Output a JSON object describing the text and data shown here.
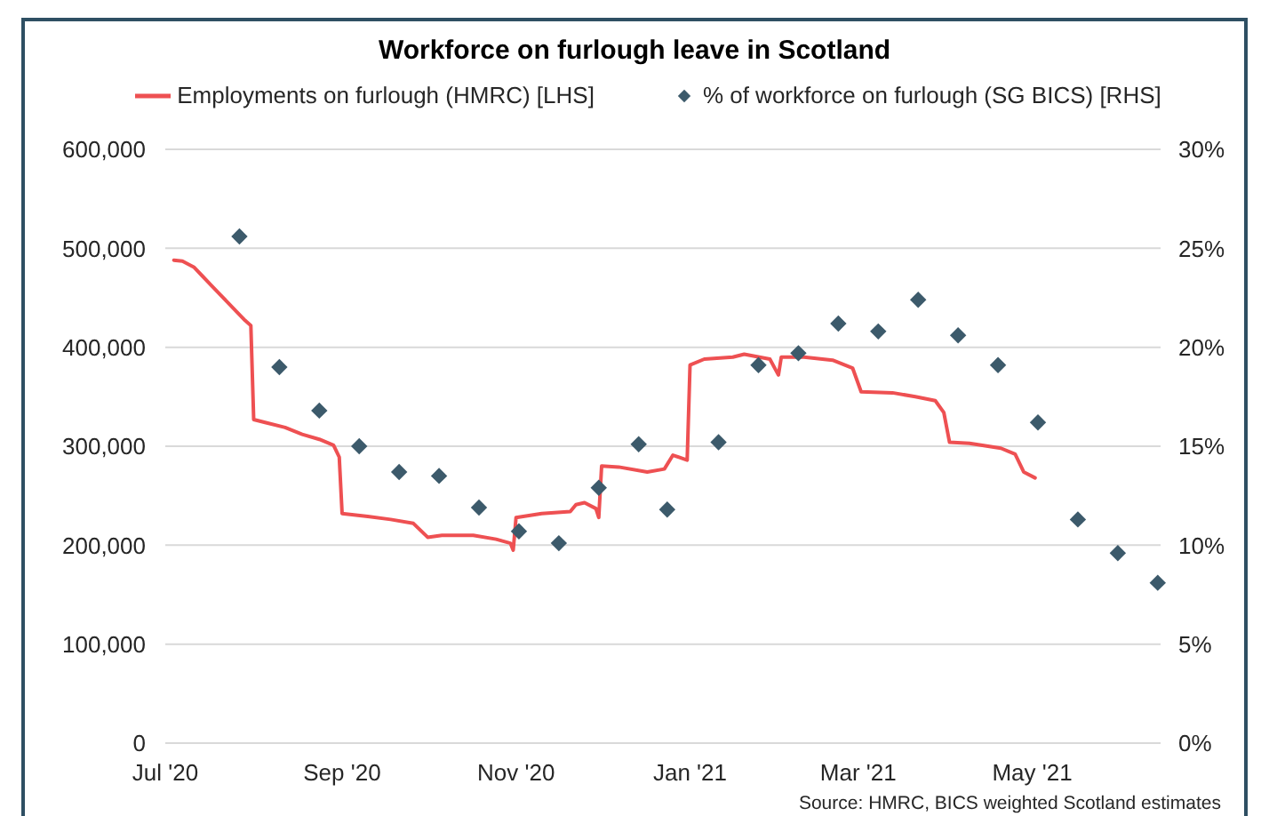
{
  "chart_data": {
    "type": "line",
    "title": "Workforce on furlough leave in Scotland",
    "xlim": [
      "2020-07-01",
      "2021-06-15"
    ],
    "xticks": [
      {
        "value": "2020-07-01",
        "label": "Jul '20"
      },
      {
        "value": "2020-09-01",
        "label": "Sep '20"
      },
      {
        "value": "2020-11-01",
        "label": "Nov '20"
      },
      {
        "value": "2021-01-01",
        "label": "Jan '21"
      },
      {
        "value": "2021-03-01",
        "label": "Mar '21"
      },
      {
        "value": "2021-05-01",
        "label": "May '21"
      }
    ],
    "ylim": [
      0,
      600000
    ],
    "yticks": [
      0,
      {
        "value": 100000,
        "label": "100,000"
      },
      {
        "value": 200000,
        "label": "200,000"
      },
      {
        "value": 300000,
        "label": "300,000"
      },
      {
        "value": 400000,
        "label": "400,000"
      },
      {
        "value": 500000,
        "label": "500,000"
      },
      {
        "value": 600000,
        "label": "600,000"
      }
    ],
    "y2lim": [
      0,
      30
    ],
    "y2ticks": [
      {
        "value": 0,
        "label": "0%"
      },
      {
        "value": 5,
        "label": "5%"
      },
      {
        "value": 10,
        "label": "10%"
      },
      {
        "value": 15,
        "label": "15%"
      },
      {
        "value": 20,
        "label": "20%"
      },
      {
        "value": 25,
        "label": "25%"
      },
      {
        "value": 30,
        "label": "30%"
      }
    ],
    "grid": "y",
    "legend": "top",
    "series": [
      {
        "name": "Employments on furlough (HMRC) [LHS]",
        "color": "#ee5052",
        "x": [
          "2020-07-04",
          "2020-07-07",
          "2020-07-11",
          "2020-07-14",
          "2020-07-17",
          "2020-07-20",
          "2020-07-23",
          "2020-07-26",
          "2020-07-29",
          "2020-07-31",
          "2020-08-01",
          "2020-08-05",
          "2020-08-12",
          "2020-08-18",
          "2020-08-24",
          "2020-08-29",
          "2020-08-31",
          "2020-09-01",
          "2020-09-10",
          "2020-09-18",
          "2020-09-26",
          "2020-10-01",
          "2020-10-06",
          "2020-10-17",
          "2020-10-25",
          "2020-10-30",
          "2020-10-31",
          "2020-11-01",
          "2020-11-10",
          "2020-11-20",
          "2020-11-22",
          "2020-11-25",
          "2020-11-29",
          "2020-11-30",
          "2020-12-01",
          "2020-12-07",
          "2020-12-17",
          "2020-12-23",
          "2020-12-26",
          "2020-12-29",
          "2020-12-31",
          "2021-01-01",
          "2021-01-06",
          "2021-01-16",
          "2021-01-20",
          "2021-01-29",
          "2021-02-01",
          "2021-02-02",
          "2021-02-10",
          "2021-02-20",
          "2021-02-27",
          "2021-03-02",
          "2021-03-13",
          "2021-03-21",
          "2021-03-28",
          "2021-03-31",
          "2021-04-02",
          "2021-04-09",
          "2021-04-20",
          "2021-04-25",
          "2021-04-28",
          "2021-05-02"
        ],
        "values": [
          488000,
          487000,
          481000,
          472000,
          463000,
          454000,
          445000,
          436000,
          427000,
          422000,
          327000,
          324000,
          319000,
          312000,
          307000,
          301000,
          289000,
          232000,
          229000,
          226000,
          222000,
          208000,
          210000,
          210000,
          206000,
          202000,
          195000,
          228000,
          232000,
          234000,
          241000,
          243000,
          237000,
          228000,
          280000,
          279000,
          274000,
          277000,
          291000,
          288000,
          286000,
          382000,
          388000,
          390000,
          393000,
          388000,
          372000,
          390000,
          390000,
          387000,
          379000,
          355000,
          354000,
          350000,
          346000,
          334000,
          304000,
          303000,
          298000,
          292000,
          274000,
          268000
        ]
      },
      {
        "name": "% of workforce on furlough (SG BICS) [RHS]",
        "type": "scatter",
        "color": "#3c5a6b",
        "marker": "diamond",
        "axis": "y2",
        "x": [
          "2020-07-27",
          "2020-08-10",
          "2020-08-24",
          "2020-09-07",
          "2020-09-21",
          "2020-10-05",
          "2020-10-19",
          "2020-11-02",
          "2020-11-16",
          "2020-11-30",
          "2020-12-14",
          "2020-12-24",
          "2021-01-11",
          "2021-01-25",
          "2021-02-08",
          "2021-02-22",
          "2021-03-08",
          "2021-03-22",
          "2021-04-05",
          "2021-04-19",
          "2021-05-03",
          "2021-05-17",
          "2021-05-31",
          "2021-06-14"
        ],
        "values": [
          25.6,
          19.0,
          16.8,
          15.0,
          13.7,
          13.5,
          11.9,
          10.7,
          10.1,
          12.9,
          15.1,
          11.8,
          15.2,
          19.1,
          19.7,
          21.2,
          20.8,
          22.4,
          20.6,
          19.1,
          16.2,
          11.3,
          9.6,
          8.1
        ]
      }
    ],
    "annotations": [
      "Source: HMRC, BICS weighted Scotland estimates"
    ]
  }
}
